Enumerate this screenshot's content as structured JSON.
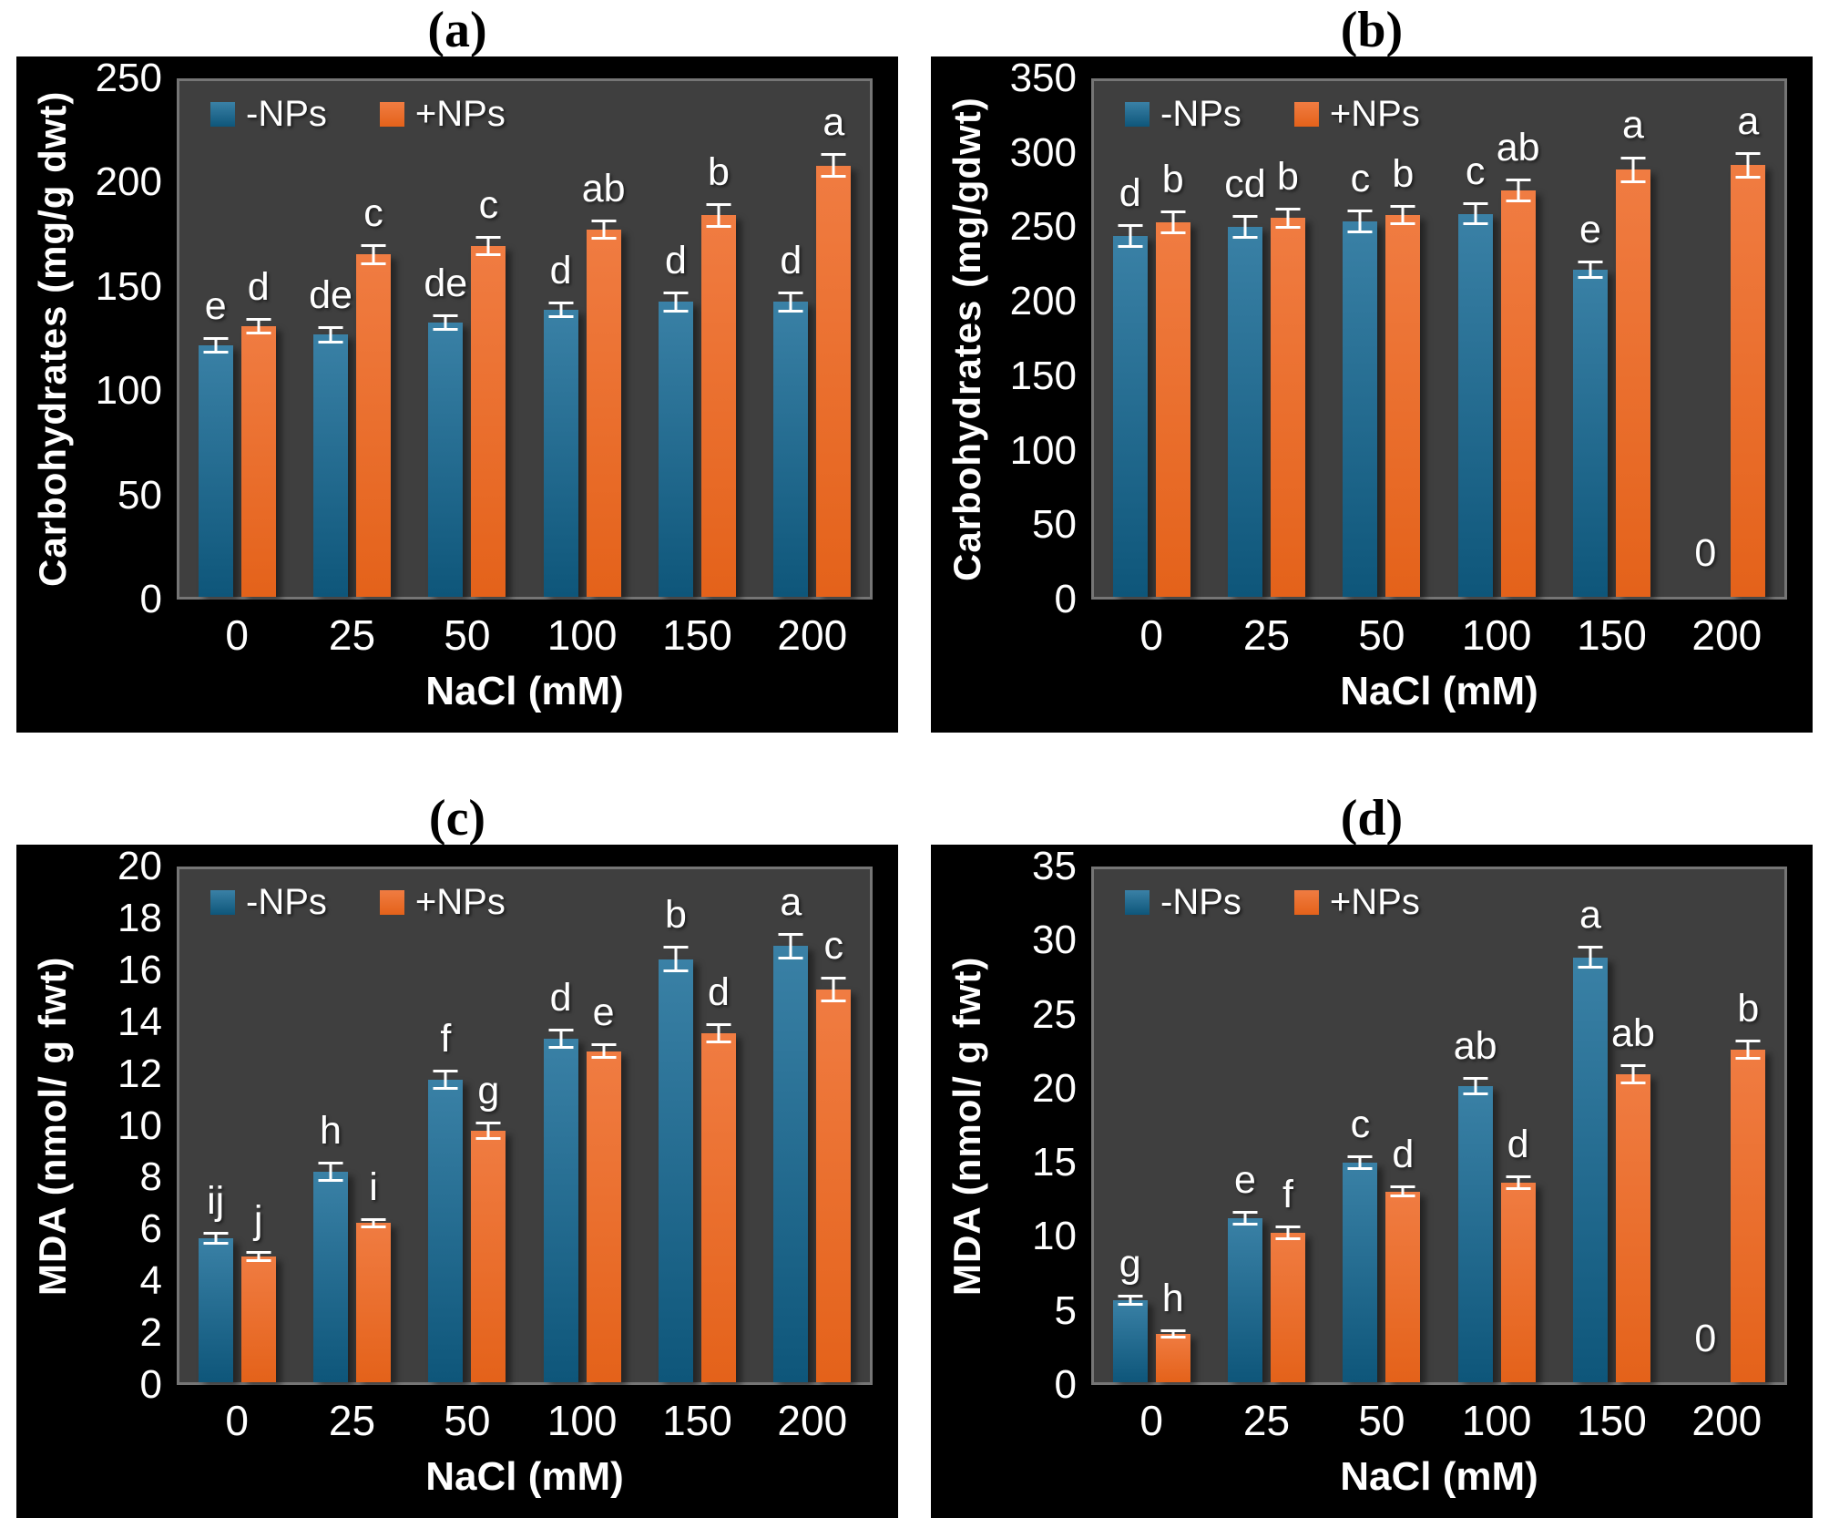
{
  "colors": {
    "page_bg": "#FFFFFF",
    "panel_bg": "#000000",
    "plot_bg": "#3F3F3F",
    "axis_line": "#757575",
    "text": "#FFFFFF",
    "error_bar": "#FFFFFF",
    "minus_nps_top": "#3A81A6",
    "minus_nps_bottom": "#0E567A",
    "plus_nps_top": "#F07C42",
    "plus_nps_bottom": "#E4621A"
  },
  "chart_data": [
    {
      "type": "bar",
      "title": "(a)",
      "ylabel": "Carbohydrates (mg/g dwt)",
      "xlabel": "NaCl (mM)",
      "ylim": [
        0,
        250
      ],
      "ytick_step": 50,
      "grid": false,
      "legend_position": "top-left-inside",
      "categories": [
        "0",
        "25",
        "50",
        "100",
        "150",
        "200"
      ],
      "series": [
        {
          "name": "-NPs",
          "color_top": "#3A81A6",
          "color_bottom": "#0E567A",
          "values": [
            122,
            127,
            133,
            139,
            143,
            143
          ],
          "errors": [
            4,
            4,
            4,
            4,
            5,
            5
          ],
          "letters": [
            "e",
            "de",
            "de",
            "d",
            "d",
            "d"
          ]
        },
        {
          "name": "+NPs",
          "color_top": "#F07C42",
          "color_bottom": "#E4621A",
          "values": [
            131,
            166,
            170,
            178,
            185,
            209
          ],
          "errors": [
            4,
            5,
            5,
            5,
            6,
            6
          ],
          "letters": [
            "d",
            "c",
            "c",
            "ab",
            "b",
            "a"
          ]
        }
      ]
    },
    {
      "type": "bar",
      "title": "(b)",
      "ylabel": "Carbohydrates (mg/gdwt)",
      "xlabel": "NaCl (mM)",
      "ylim": [
        0,
        350
      ],
      "ytick_step": 50,
      "grid": false,
      "legend_position": "top-left-inside",
      "categories": [
        "0",
        "25",
        "50",
        "100",
        "150",
        "200"
      ],
      "series": [
        {
          "name": "-NPs",
          "color_top": "#3A81A6",
          "color_bottom": "#0E567A",
          "values": [
            245,
            251,
            255,
            260,
            222,
            0
          ],
          "errors": [
            8,
            8,
            8,
            8,
            6,
            0
          ],
          "letters": [
            "d",
            "cd",
            "c",
            "c",
            "e",
            "0"
          ]
        },
        {
          "name": "+NPs",
          "color_top": "#F07C42",
          "color_bottom": "#E4621A",
          "values": [
            254,
            257,
            259,
            276,
            290,
            293
          ],
          "errors": [
            8,
            7,
            7,
            8,
            9,
            9
          ],
          "letters": [
            "b",
            "b",
            "b",
            "ab",
            "a",
            "a"
          ]
        }
      ]
    },
    {
      "type": "bar",
      "title": "(c)",
      "ylabel": "MDA (nmol/ g fwt)",
      "xlabel": "NaCl (mM)",
      "ylim": [
        0,
        20
      ],
      "ytick_step": 2,
      "grid": false,
      "legend_position": "top-left-inside",
      "categories": [
        "0",
        "25",
        "50",
        "100",
        "150",
        "200"
      ],
      "series": [
        {
          "name": "-NPs",
          "color_top": "#3A81A6",
          "color_bottom": "#0E567A",
          "values": [
            5.6,
            8.2,
            11.8,
            13.4,
            16.5,
            17.0
          ],
          "errors": [
            0.25,
            0.4,
            0.4,
            0.4,
            0.5,
            0.5
          ],
          "letters": [
            "ij",
            "h",
            "f",
            "d",
            "b",
            "a"
          ]
        },
        {
          "name": "+NPs",
          "color_top": "#F07C42",
          "color_bottom": "#E4621A",
          "values": [
            4.9,
            6.2,
            9.8,
            12.9,
            13.6,
            15.3
          ],
          "errors": [
            0.2,
            0.2,
            0.35,
            0.3,
            0.4,
            0.5
          ],
          "letters": [
            "j",
            "i",
            "g",
            "e",
            "d",
            "c"
          ]
        }
      ]
    },
    {
      "type": "bar",
      "title": "(d)",
      "ylabel": "MDA (nmol/ g fwt)",
      "xlabel": "NaCl (mM)",
      "ylim": [
        0,
        35
      ],
      "ytick_step": 5,
      "grid": false,
      "legend_position": "top-left-inside",
      "categories": [
        "0",
        "25",
        "50",
        "100",
        "150",
        "200"
      ],
      "series": [
        {
          "name": "-NPs",
          "color_top": "#3A81A6",
          "color_bottom": "#0E567A",
          "values": [
            5.6,
            11.2,
            15.0,
            20.2,
            29.0,
            0
          ],
          "errors": [
            0.4,
            0.5,
            0.5,
            0.6,
            0.8,
            0
          ],
          "letters": [
            "g",
            "e",
            "c",
            "ab",
            "a",
            "0"
          ]
        },
        {
          "name": "+NPs",
          "color_top": "#F07C42",
          "color_bottom": "#E4621A",
          "values": [
            3.3,
            10.2,
            13.0,
            13.6,
            21.0,
            22.7
          ],
          "errors": [
            0.3,
            0.5,
            0.4,
            0.5,
            0.7,
            0.7
          ],
          "letters": [
            "h",
            "f",
            "d",
            "d",
            "ab",
            "b"
          ]
        }
      ]
    }
  ]
}
